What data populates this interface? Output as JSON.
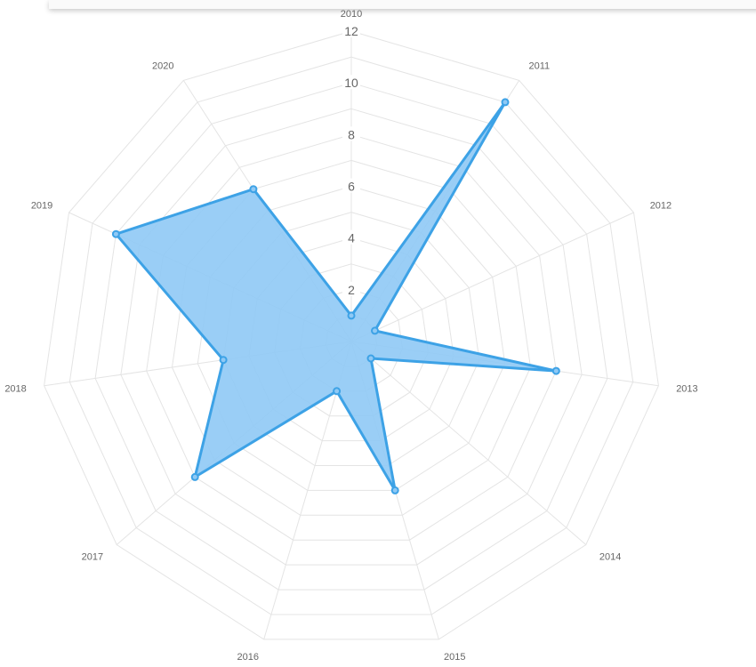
{
  "chart_data": {
    "type": "radar",
    "categories": [
      "2010",
      "2011",
      "2012",
      "2013",
      "2014",
      "2015",
      "2016",
      "2017",
      "2018",
      "2019",
      "2020"
    ],
    "series": [
      {
        "values": [
          1,
          11,
          1,
          8,
          1,
          6,
          2,
          8,
          5,
          10,
          7
        ]
      }
    ],
    "rlim": [
      0,
      12
    ],
    "ticks": [
      "2",
      "4",
      "6",
      "8",
      "10",
      "12"
    ],
    "grid": true,
    "colors": {
      "line": "#3da2e6",
      "fill": "#8fc9f5",
      "grid": "#e4e4e4",
      "label": "#666666"
    }
  }
}
